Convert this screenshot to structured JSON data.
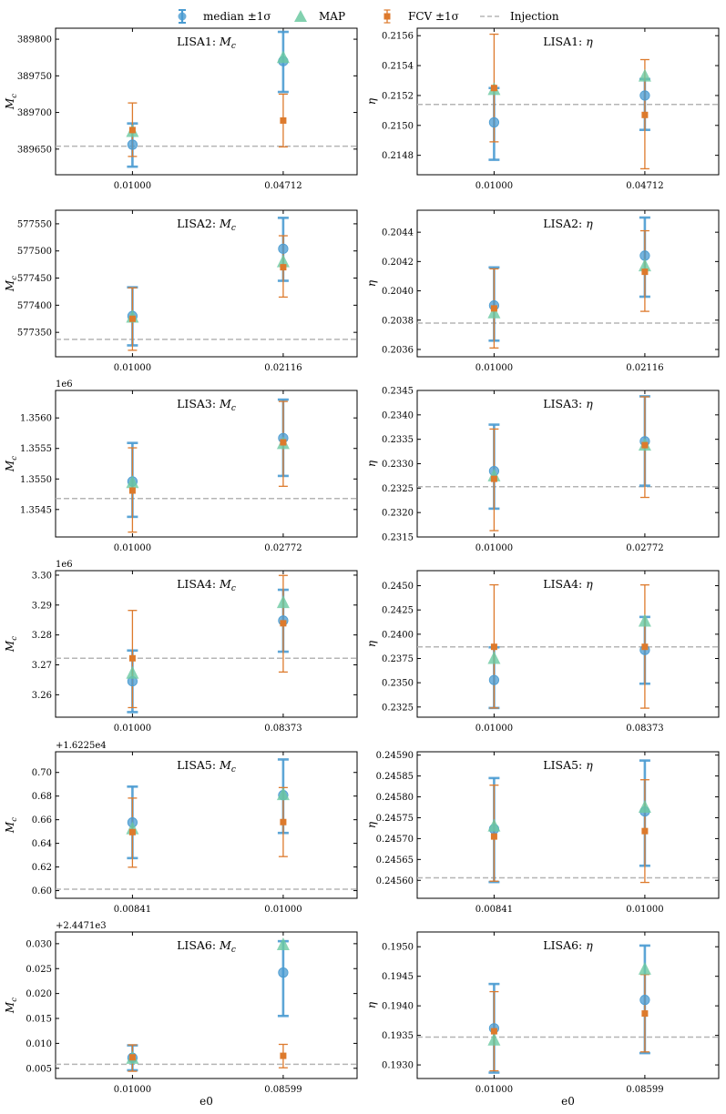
{
  "legend": [
    {
      "label": "median ±1σ",
      "marker": "circle-errorbar",
      "color": "#3a8fc9"
    },
    {
      "label": "MAP",
      "marker": "triangle",
      "color": "#5fc7a0"
    },
    {
      "label": "FCV ±1σ",
      "marker": "square-errorbar",
      "color": "#e07b28"
    },
    {
      "label": "Injection",
      "marker": "dashed-line",
      "color": "#b0b0b0"
    }
  ],
  "colors": {
    "median": "#4a9bd1",
    "map": "#6cc9a1",
    "fcv": "#dd7a2c",
    "injection": "#b5b5b5"
  },
  "xlabel": "e0",
  "chart_data": [
    {
      "type": "scatter",
      "title": "LISA1: M_c",
      "ylabel": "M_c",
      "offset": "",
      "categories": [
        "0.01000",
        "0.04712"
      ],
      "yticks": [
        "389650",
        "389700",
        "389750",
        "389800"
      ],
      "ylim": [
        389615,
        389815
      ],
      "injection": 389654,
      "median": [
        {
          "y": 389656,
          "lo": 389626,
          "hi": 389685
        },
        {
          "y": 389770,
          "lo": 389728,
          "hi": 389810
        }
      ],
      "map": [
        389674,
        389775
      ],
      "fcv": [
        {
          "y": 389676,
          "lo": 389640,
          "hi": 389713
        },
        {
          "y": 389689,
          "lo": 389653,
          "hi": 389725
        }
      ]
    },
    {
      "type": "scatter",
      "title": "LISA1: η",
      "ylabel": "η",
      "offset": "",
      "categories": [
        "0.01000",
        "0.04712"
      ],
      "yticks": [
        "0.2148",
        "0.2150",
        "0.2152",
        "0.2154",
        "0.2156"
      ],
      "ylim": [
        0.21467,
        0.21565
      ],
      "injection": 0.21514,
      "median": [
        {
          "y": 0.21502,
          "lo": 0.21477,
          "hi": 0.21525
        },
        {
          "y": 0.2152,
          "lo": 0.21497,
          "hi": 0.21531
        }
      ],
      "map": [
        0.21524,
        0.21533
      ],
      "fcv": [
        {
          "y": 0.21525,
          "lo": 0.21489,
          "hi": 0.21561
        },
        {
          "y": 0.21507,
          "lo": 0.21471,
          "hi": 0.21544
        }
      ]
    },
    {
      "type": "scatter",
      "title": "LISA2: M_c",
      "ylabel": "M_c",
      "offset": "",
      "categories": [
        "0.01000",
        "0.02116"
      ],
      "yticks": [
        "577350",
        "577400",
        "577450",
        "577500",
        "577550"
      ],
      "ylim": [
        577305,
        577575
      ],
      "injection": 577337,
      "median": [
        {
          "y": 577380,
          "lo": 577326,
          "hi": 577433
        },
        {
          "y": 577504,
          "lo": 577445,
          "hi": 577561
        }
      ],
      "map": [
        577378,
        577480
      ],
      "fcv": [
        {
          "y": 577375,
          "lo": 577317,
          "hi": 577432
        },
        {
          "y": 577470,
          "lo": 577415,
          "hi": 577528
        }
      ]
    },
    {
      "type": "scatter",
      "title": "LISA2: η",
      "ylabel": "η",
      "offset": "",
      "categories": [
        "0.01000",
        "0.02116"
      ],
      "yticks": [
        "0.2036",
        "0.2038",
        "0.2040",
        "0.2042",
        "0.2044"
      ],
      "ylim": [
        0.20355,
        0.20455
      ],
      "injection": 0.20378,
      "median": [
        {
          "y": 0.2039,
          "lo": 0.20366,
          "hi": 0.20416
        },
        {
          "y": 0.20424,
          "lo": 0.20396,
          "hi": 0.2045
        }
      ],
      "map": [
        0.20385,
        0.20417
      ],
      "fcv": [
        {
          "y": 0.20388,
          "lo": 0.20361,
          "hi": 0.20415
        },
        {
          "y": 0.20413,
          "lo": 0.20386,
          "hi": 0.20441
        }
      ]
    },
    {
      "type": "scatter",
      "title": "LISA3: M_c",
      "ylabel": "M_c",
      "offset": "1e6",
      "categories": [
        "0.01000",
        "0.02772"
      ],
      "yticks": [
        "1.3545",
        "1.3550",
        "1.3555",
        "1.3560"
      ],
      "ylim": [
        1.35405,
        1.35645
      ],
      "injection": 1.35468,
      "median": [
        {
          "y": 1.35496,
          "lo": 1.35438,
          "hi": 1.35559
        },
        {
          "y": 1.35567,
          "lo": 1.35505,
          "hi": 1.3563
        }
      ],
      "map": [
        1.35494,
        1.35558
      ],
      "fcv": [
        {
          "y": 1.35481,
          "lo": 1.35413,
          "hi": 1.35551
        },
        {
          "y": 1.3556,
          "lo": 1.35488,
          "hi": 1.35627
        }
      ]
    },
    {
      "type": "scatter",
      "title": "LISA3: η",
      "ylabel": "η",
      "offset": "",
      "categories": [
        "0.01000",
        "0.02772"
      ],
      "yticks": [
        "0.2315",
        "0.2320",
        "0.2325",
        "0.2330",
        "0.2335",
        "0.2340",
        "0.2345"
      ],
      "ylim": [
        0.2315,
        0.2345
      ],
      "injection": 0.23253,
      "median": [
        {
          "y": 0.23285,
          "lo": 0.23208,
          "hi": 0.2338
        },
        {
          "y": 0.23346,
          "lo": 0.23255,
          "hi": 0.23438
        }
      ],
      "map": [
        0.23275,
        0.23338
      ],
      "fcv": [
        {
          "y": 0.23269,
          "lo": 0.23163,
          "hi": 0.23371
        },
        {
          "y": 0.23338,
          "lo": 0.23231,
          "hi": 0.23437
        }
      ]
    },
    {
      "type": "scatter",
      "title": "LISA4: M_c",
      "ylabel": "M_c",
      "offset": "1e6",
      "categories": [
        "0.01000",
        "0.08373"
      ],
      "yticks": [
        "3.26",
        "3.27",
        "3.28",
        "3.29",
        "3.30"
      ],
      "ylim": [
        3.2525,
        3.3015
      ],
      "injection": 3.2722,
      "median": [
        {
          "y": 3.2645,
          "lo": 3.2542,
          "hi": 3.2748
        },
        {
          "y": 3.2848,
          "lo": 3.2744,
          "hi": 3.2951
        }
      ],
      "map": [
        3.2672,
        3.2908
      ],
      "fcv": [
        {
          "y": 3.2722,
          "lo": 3.2557,
          "hi": 3.2882
        },
        {
          "y": 3.2839,
          "lo": 3.2676,
          "hi": 3.2999
        }
      ]
    },
    {
      "type": "scatter",
      "title": "LISA4: η",
      "ylabel": "η",
      "offset": "",
      "categories": [
        "0.01000",
        "0.08373"
      ],
      "yticks": [
        "0.2325",
        "0.2350",
        "0.2375",
        "0.2400",
        "0.2425",
        "0.2450"
      ],
      "ylim": [
        0.23145,
        0.24655
      ],
      "injection": 0.2387,
      "median": [
        {
          "y": 0.23528,
          "lo": 0.2324,
          "hi": 0.23865
        },
        {
          "y": 0.23837,
          "lo": 0.2349,
          "hi": 0.24178
        }
      ],
      "map": [
        0.2375,
        0.24135
      ],
      "fcv": [
        {
          "y": 0.2387,
          "lo": 0.2324,
          "hi": 0.24509
        },
        {
          "y": 0.2387,
          "lo": 0.23238,
          "hi": 0.24508
        }
      ]
    },
    {
      "type": "scatter",
      "title": "LISA5: M_c",
      "ylabel": "M_c",
      "offset": "+1.6225e4",
      "categories": [
        "0.00841",
        "0.01000"
      ],
      "yticks": [
        "0.60",
        "0.62",
        "0.64",
        "0.66",
        "0.68",
        "0.70"
      ],
      "ylim": [
        0.5935,
        0.7175
      ],
      "injection": 0.6012,
      "median": [
        {
          "y": 0.6577,
          "lo": 0.6275,
          "hi": 0.688
        },
        {
          "y": 0.6808,
          "lo": 0.6488,
          "hi": 0.711
        }
      ],
      "map": [
        0.6523,
        0.6812
      ],
      "fcv": [
        {
          "y": 0.6495,
          "lo": 0.6198,
          "hi": 0.6783
        },
        {
          "y": 0.658,
          "lo": 0.6288,
          "hi": 0.6872
        }
      ]
    },
    {
      "type": "scatter",
      "title": "LISA5: η",
      "ylabel": "η",
      "offset": "",
      "categories": [
        "0.00841",
        "0.01000"
      ],
      "yticks": [
        "0.24560",
        "0.24565",
        "0.24570",
        "0.24575",
        "0.24580",
        "0.24585",
        "0.24590"
      ],
      "ylim": [
        0.245557,
        0.245908
      ],
      "injection": 0.245606,
      "median": [
        {
          "y": 0.245723,
          "lo": 0.245596,
          "hi": 0.245845
        },
        {
          "y": 0.245765,
          "lo": 0.245635,
          "hi": 0.245887
        }
      ],
      "map": [
        0.24573,
        0.245775
      ],
      "fcv": [
        {
          "y": 0.245705,
          "lo": 0.245598,
          "hi": 0.245828
        },
        {
          "y": 0.245718,
          "lo": 0.245595,
          "hi": 0.245841
        }
      ]
    },
    {
      "type": "scatter",
      "title": "LISA6: M_c",
      "ylabel": "M_c",
      "offset": "+2.4471e3",
      "categories": [
        "0.01000",
        "0.08599"
      ],
      "yticks": [
        "0.005",
        "0.010",
        "0.015",
        "0.020",
        "0.025",
        "0.030"
      ],
      "ylim": [
        0.00295,
        0.03235
      ],
      "injection": 0.0058,
      "median": [
        {
          "y": 0.0071,
          "lo": 0.0046,
          "hi": 0.0096
        },
        {
          "y": 0.0242,
          "lo": 0.0155,
          "hi": 0.0305
        }
      ],
      "map": [
        0.007,
        0.0298
      ],
      "fcv": [
        {
          "y": 0.0072,
          "lo": 0.0044,
          "hi": 0.0097
        },
        {
          "y": 0.0075,
          "lo": 0.0051,
          "hi": 0.0098
        }
      ]
    },
    {
      "type": "scatter",
      "title": "LISA6: η",
      "ylabel": "η",
      "offset": "",
      "categories": [
        "0.01000",
        "0.08599"
      ],
      "yticks": [
        "0.1930",
        "0.1935",
        "0.1940",
        "0.1945",
        "0.1950"
      ],
      "ylim": [
        0.19277,
        0.19525
      ],
      "injection": 0.19347,
      "median": [
        {
          "y": 0.19362,
          "lo": 0.19287,
          "hi": 0.19437
        },
        {
          "y": 0.1941,
          "lo": 0.1932,
          "hi": 0.19502
        }
      ],
      "map": [
        0.19342,
        0.19462
      ],
      "fcv": [
        {
          "y": 0.19357,
          "lo": 0.1929,
          "hi": 0.19424
        },
        {
          "y": 0.19387,
          "lo": 0.19322,
          "hi": 0.19453
        }
      ]
    }
  ]
}
